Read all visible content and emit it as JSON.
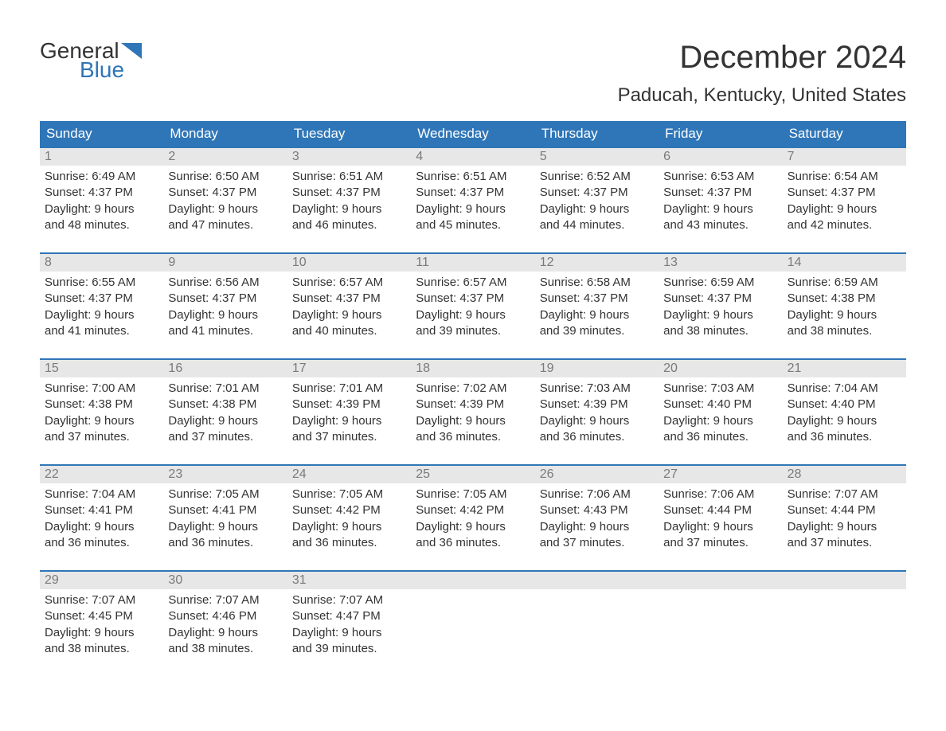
{
  "logo": {
    "word1": "General",
    "word2": "Blue",
    "tri_color": "#2f76b8",
    "text_color": "#333333"
  },
  "title": "December 2024",
  "location": "Paducah, Kentucky, United States",
  "colors": {
    "header_bg": "#2f76b8",
    "header_text": "#ffffff",
    "daynum_bg": "#e7e7e7",
    "daynum_text": "#7a7a7a",
    "body_text": "#333333",
    "week_border": "#2f76b8",
    "page_bg": "#ffffff"
  },
  "fonts": {
    "title_size_pt": 30,
    "location_size_pt": 18,
    "header_size_pt": 13,
    "body_size_pt": 11
  },
  "weekdays": [
    "Sunday",
    "Monday",
    "Tuesday",
    "Wednesday",
    "Thursday",
    "Friday",
    "Saturday"
  ],
  "weeks": [
    [
      {
        "n": "1",
        "sunrise": "Sunrise: 6:49 AM",
        "sunset": "Sunset: 4:37 PM",
        "dl1": "Daylight: 9 hours",
        "dl2": "and 48 minutes."
      },
      {
        "n": "2",
        "sunrise": "Sunrise: 6:50 AM",
        "sunset": "Sunset: 4:37 PM",
        "dl1": "Daylight: 9 hours",
        "dl2": "and 47 minutes."
      },
      {
        "n": "3",
        "sunrise": "Sunrise: 6:51 AM",
        "sunset": "Sunset: 4:37 PM",
        "dl1": "Daylight: 9 hours",
        "dl2": "and 46 minutes."
      },
      {
        "n": "4",
        "sunrise": "Sunrise: 6:51 AM",
        "sunset": "Sunset: 4:37 PM",
        "dl1": "Daylight: 9 hours",
        "dl2": "and 45 minutes."
      },
      {
        "n": "5",
        "sunrise": "Sunrise: 6:52 AM",
        "sunset": "Sunset: 4:37 PM",
        "dl1": "Daylight: 9 hours",
        "dl2": "and 44 minutes."
      },
      {
        "n": "6",
        "sunrise": "Sunrise: 6:53 AM",
        "sunset": "Sunset: 4:37 PM",
        "dl1": "Daylight: 9 hours",
        "dl2": "and 43 minutes."
      },
      {
        "n": "7",
        "sunrise": "Sunrise: 6:54 AM",
        "sunset": "Sunset: 4:37 PM",
        "dl1": "Daylight: 9 hours",
        "dl2": "and 42 minutes."
      }
    ],
    [
      {
        "n": "8",
        "sunrise": "Sunrise: 6:55 AM",
        "sunset": "Sunset: 4:37 PM",
        "dl1": "Daylight: 9 hours",
        "dl2": "and 41 minutes."
      },
      {
        "n": "9",
        "sunrise": "Sunrise: 6:56 AM",
        "sunset": "Sunset: 4:37 PM",
        "dl1": "Daylight: 9 hours",
        "dl2": "and 41 minutes."
      },
      {
        "n": "10",
        "sunrise": "Sunrise: 6:57 AM",
        "sunset": "Sunset: 4:37 PM",
        "dl1": "Daylight: 9 hours",
        "dl2": "and 40 minutes."
      },
      {
        "n": "11",
        "sunrise": "Sunrise: 6:57 AM",
        "sunset": "Sunset: 4:37 PM",
        "dl1": "Daylight: 9 hours",
        "dl2": "and 39 minutes."
      },
      {
        "n": "12",
        "sunrise": "Sunrise: 6:58 AM",
        "sunset": "Sunset: 4:37 PM",
        "dl1": "Daylight: 9 hours",
        "dl2": "and 39 minutes."
      },
      {
        "n": "13",
        "sunrise": "Sunrise: 6:59 AM",
        "sunset": "Sunset: 4:37 PM",
        "dl1": "Daylight: 9 hours",
        "dl2": "and 38 minutes."
      },
      {
        "n": "14",
        "sunrise": "Sunrise: 6:59 AM",
        "sunset": "Sunset: 4:38 PM",
        "dl1": "Daylight: 9 hours",
        "dl2": "and 38 minutes."
      }
    ],
    [
      {
        "n": "15",
        "sunrise": "Sunrise: 7:00 AM",
        "sunset": "Sunset: 4:38 PM",
        "dl1": "Daylight: 9 hours",
        "dl2": "and 37 minutes."
      },
      {
        "n": "16",
        "sunrise": "Sunrise: 7:01 AM",
        "sunset": "Sunset: 4:38 PM",
        "dl1": "Daylight: 9 hours",
        "dl2": "and 37 minutes."
      },
      {
        "n": "17",
        "sunrise": "Sunrise: 7:01 AM",
        "sunset": "Sunset: 4:39 PM",
        "dl1": "Daylight: 9 hours",
        "dl2": "and 37 minutes."
      },
      {
        "n": "18",
        "sunrise": "Sunrise: 7:02 AM",
        "sunset": "Sunset: 4:39 PM",
        "dl1": "Daylight: 9 hours",
        "dl2": "and 36 minutes."
      },
      {
        "n": "19",
        "sunrise": "Sunrise: 7:03 AM",
        "sunset": "Sunset: 4:39 PM",
        "dl1": "Daylight: 9 hours",
        "dl2": "and 36 minutes."
      },
      {
        "n": "20",
        "sunrise": "Sunrise: 7:03 AM",
        "sunset": "Sunset: 4:40 PM",
        "dl1": "Daylight: 9 hours",
        "dl2": "and 36 minutes."
      },
      {
        "n": "21",
        "sunrise": "Sunrise: 7:04 AM",
        "sunset": "Sunset: 4:40 PM",
        "dl1": "Daylight: 9 hours",
        "dl2": "and 36 minutes."
      }
    ],
    [
      {
        "n": "22",
        "sunrise": "Sunrise: 7:04 AM",
        "sunset": "Sunset: 4:41 PM",
        "dl1": "Daylight: 9 hours",
        "dl2": "and 36 minutes."
      },
      {
        "n": "23",
        "sunrise": "Sunrise: 7:05 AM",
        "sunset": "Sunset: 4:41 PM",
        "dl1": "Daylight: 9 hours",
        "dl2": "and 36 minutes."
      },
      {
        "n": "24",
        "sunrise": "Sunrise: 7:05 AM",
        "sunset": "Sunset: 4:42 PM",
        "dl1": "Daylight: 9 hours",
        "dl2": "and 36 minutes."
      },
      {
        "n": "25",
        "sunrise": "Sunrise: 7:05 AM",
        "sunset": "Sunset: 4:42 PM",
        "dl1": "Daylight: 9 hours",
        "dl2": "and 36 minutes."
      },
      {
        "n": "26",
        "sunrise": "Sunrise: 7:06 AM",
        "sunset": "Sunset: 4:43 PM",
        "dl1": "Daylight: 9 hours",
        "dl2": "and 37 minutes."
      },
      {
        "n": "27",
        "sunrise": "Sunrise: 7:06 AM",
        "sunset": "Sunset: 4:44 PM",
        "dl1": "Daylight: 9 hours",
        "dl2": "and 37 minutes."
      },
      {
        "n": "28",
        "sunrise": "Sunrise: 7:07 AM",
        "sunset": "Sunset: 4:44 PM",
        "dl1": "Daylight: 9 hours",
        "dl2": "and 37 minutes."
      }
    ],
    [
      {
        "n": "29",
        "sunrise": "Sunrise: 7:07 AM",
        "sunset": "Sunset: 4:45 PM",
        "dl1": "Daylight: 9 hours",
        "dl2": "and 38 minutes."
      },
      {
        "n": "30",
        "sunrise": "Sunrise: 7:07 AM",
        "sunset": "Sunset: 4:46 PM",
        "dl1": "Daylight: 9 hours",
        "dl2": "and 38 minutes."
      },
      {
        "n": "31",
        "sunrise": "Sunrise: 7:07 AM",
        "sunset": "Sunset: 4:47 PM",
        "dl1": "Daylight: 9 hours",
        "dl2": "and 39 minutes."
      },
      null,
      null,
      null,
      null
    ]
  ]
}
